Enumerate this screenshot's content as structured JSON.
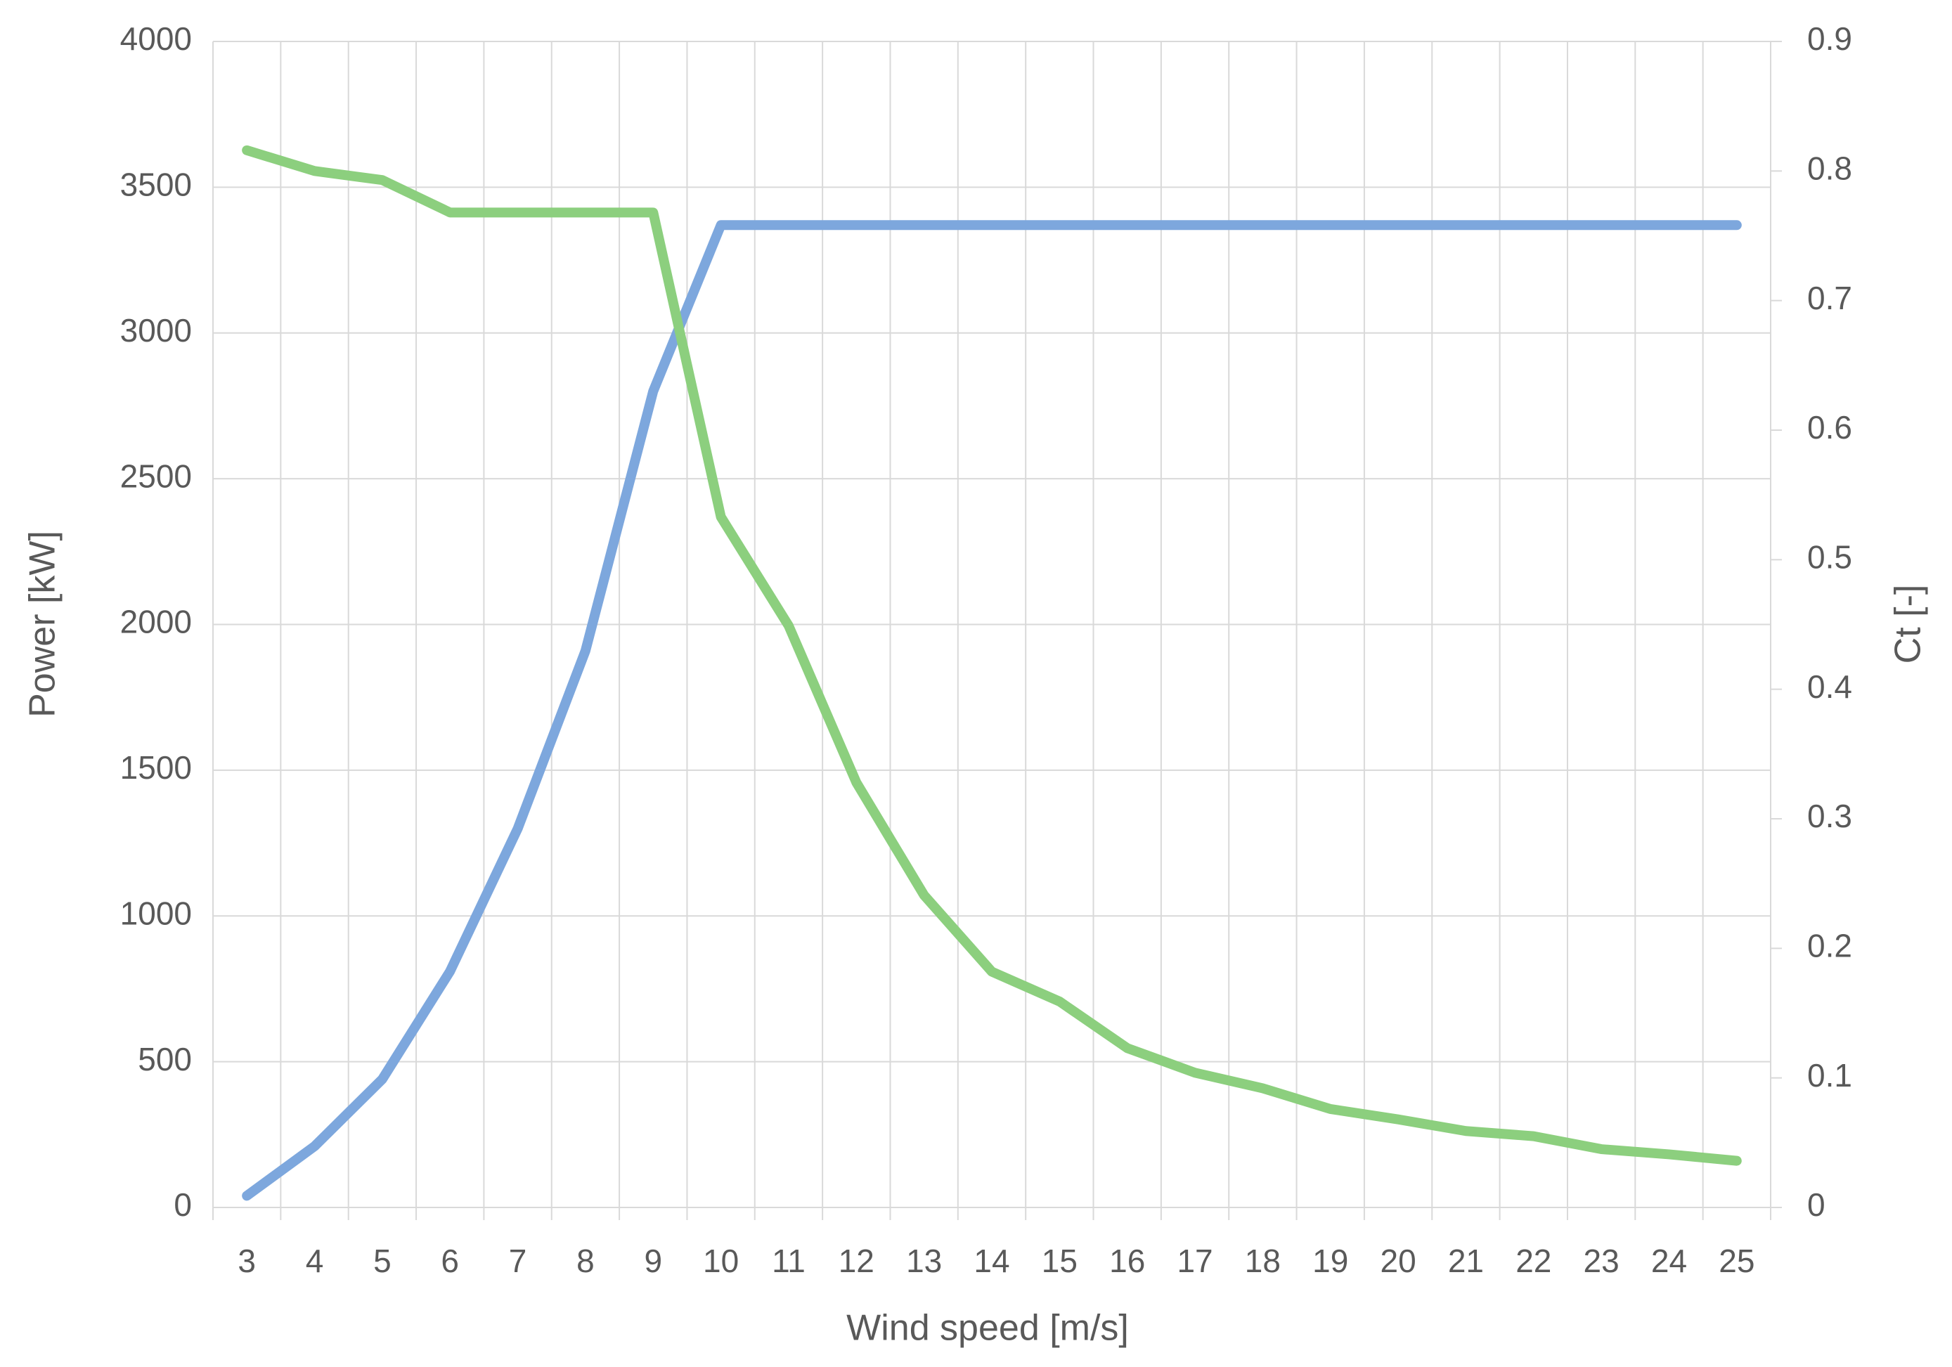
{
  "chart_data": {
    "type": "line",
    "x_label": "Wind speed [m/s]",
    "y_label": "Power [kW]",
    "y2_label": "Ct [-]",
    "categories": [
      3,
      4,
      5,
      6,
      7,
      8,
      9,
      10,
      11,
      12,
      13,
      14,
      15,
      16,
      17,
      18,
      19,
      20,
      21,
      22,
      23,
      24,
      25
    ],
    "series": [
      {
        "name": "Power",
        "color": "#7da7dd",
        "axis": "y",
        "values": [
          40,
          210,
          440,
          810,
          1300,
          1910,
          2800,
          3370,
          3370,
          3370,
          3370,
          3370,
          3370,
          3370,
          3370,
          3370,
          3370,
          3370,
          3370,
          3370,
          3370,
          3370,
          3370
        ]
      },
      {
        "name": "Ct",
        "color": "#8ccf7e",
        "axis": "y2",
        "values": [
          0.816,
          0.8,
          0.793,
          0.768,
          0.768,
          0.768,
          0.768,
          0.533,
          0.449,
          0.328,
          0.241,
          0.182,
          0.159,
          0.123,
          0.104,
          0.092,
          0.076,
          0.068,
          0.059,
          0.055,
          0.045,
          0.041,
          0.036
        ]
      }
    ],
    "ylim": [
      0,
      4000
    ],
    "yticks": [
      0,
      500,
      1000,
      1500,
      2000,
      2500,
      3000,
      3500,
      4000
    ],
    "y2lim": [
      0,
      0.9
    ],
    "y2ticks": [
      0,
      0.1,
      0.2,
      0.3,
      0.4,
      0.5,
      0.6,
      0.7,
      0.8,
      0.9
    ],
    "grid": true
  }
}
